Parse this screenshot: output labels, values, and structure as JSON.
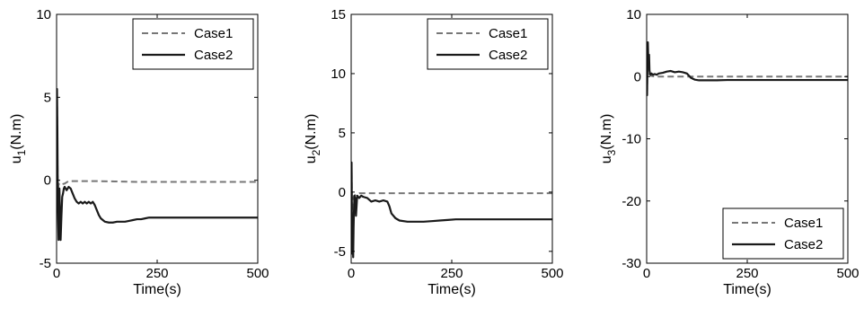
{
  "chart_data": [
    {
      "type": "line",
      "id": "u1",
      "xlabel": "Time(s)",
      "ylabel_main": "u",
      "ylabel_sub": "1",
      "ylabel_unit": "(N.m)",
      "xlim": [
        0,
        500
      ],
      "ylim": [
        -5,
        10
      ],
      "xticks": [
        0,
        250,
        500
      ],
      "yticks": [
        -5,
        0,
        5,
        10
      ],
      "legend_position": "top-right",
      "series": [
        {
          "name": "Case1",
          "style": "dashed",
          "color": "#777777",
          "x": [
            0,
            1,
            2,
            3,
            4,
            5,
            8,
            12,
            20,
            30,
            50,
            100,
            200,
            300,
            400,
            500
          ],
          "y": [
            0,
            5.5,
            2.0,
            -1.0,
            -0.6,
            -0.2,
            -0.3,
            -0.25,
            -0.2,
            -0.05,
            -0.05,
            -0.05,
            -0.1,
            -0.1,
            -0.1,
            -0.1
          ]
        },
        {
          "name": "Case2",
          "style": "solid",
          "color": "#1a1a1a",
          "x": [
            0,
            1,
            2,
            3,
            4,
            5,
            6,
            7,
            8,
            9,
            10,
            12,
            14,
            16,
            18,
            20,
            25,
            30,
            35,
            40,
            45,
            50,
            55,
            60,
            65,
            70,
            75,
            80,
            85,
            90,
            95,
            100,
            105,
            110,
            115,
            120,
            130,
            140,
            150,
            160,
            170,
            180,
            190,
            200,
            210,
            220,
            230,
            240,
            260,
            300,
            350,
            400,
            450,
            500
          ],
          "y": [
            0,
            5.5,
            3.0,
            -1.0,
            -2.5,
            -3.6,
            -2.0,
            -0.5,
            -1.5,
            -3.5,
            -3.6,
            -2.2,
            -1.0,
            -0.8,
            -0.5,
            -0.4,
            -0.6,
            -0.4,
            -0.5,
            -0.8,
            -1.1,
            -1.3,
            -1.4,
            -1.3,
            -1.4,
            -1.3,
            -1.4,
            -1.3,
            -1.4,
            -1.3,
            -1.5,
            -1.8,
            -2.1,
            -2.3,
            -2.4,
            -2.5,
            -2.55,
            -2.55,
            -2.5,
            -2.5,
            -2.5,
            -2.45,
            -2.4,
            -2.35,
            -2.35,
            -2.3,
            -2.25,
            -2.25,
            -2.25,
            -2.25,
            -2.25,
            -2.25,
            -2.25,
            -2.25
          ]
        }
      ]
    },
    {
      "type": "line",
      "id": "u2",
      "xlabel": "Time(s)",
      "ylabel_main": "u",
      "ylabel_sub": "2",
      "ylabel_unit": "(N.m)",
      "xlim": [
        0,
        500
      ],
      "ylim": [
        -6,
        15
      ],
      "xticks": [
        0,
        250,
        500
      ],
      "yticks": [
        -5,
        0,
        5,
        10,
        15
      ],
      "legend_position": "top-right",
      "series": [
        {
          "name": "Case1",
          "style": "dashed",
          "color": "#777777",
          "x": [
            0,
            1,
            2,
            3,
            5,
            8,
            12,
            20,
            30,
            50,
            100,
            200,
            300,
            400,
            500
          ],
          "y": [
            0,
            2.5,
            -2.0,
            -1.0,
            -0.5,
            -0.3,
            -0.2,
            -0.1,
            -0.1,
            -0.1,
            -0.1,
            -0.1,
            -0.1,
            -0.1,
            -0.1
          ]
        },
        {
          "name": "Case2",
          "style": "solid",
          "color": "#1a1a1a",
          "x": [
            0,
            1,
            2,
            3,
            4,
            5,
            6,
            7,
            8,
            10,
            12,
            15,
            20,
            25,
            30,
            40,
            50,
            60,
            70,
            80,
            90,
            95,
            100,
            110,
            120,
            140,
            160,
            180,
            200,
            220,
            240,
            260,
            280,
            300,
            350,
            400,
            450,
            500
          ],
          "y": [
            0,
            2.5,
            -3.0,
            -5.2,
            -4.0,
            -5.5,
            -3.0,
            -1.5,
            -0.3,
            -0.5,
            -2.0,
            -0.3,
            -0.5,
            -0.3,
            -0.4,
            -0.5,
            -0.8,
            -0.7,
            -0.8,
            -0.7,
            -0.8,
            -1.2,
            -1.8,
            -2.2,
            -2.4,
            -2.5,
            -2.5,
            -2.5,
            -2.45,
            -2.4,
            -2.35,
            -2.3,
            -2.3,
            -2.3,
            -2.3,
            -2.3,
            -2.3,
            -2.3
          ]
        }
      ]
    },
    {
      "type": "line",
      "id": "u3",
      "xlabel": "Time(s)",
      "ylabel_main": "u",
      "ylabel_sub": "3",
      "ylabel_unit": "(N.m)",
      "xlim": [
        0,
        500
      ],
      "ylim": [
        -30,
        10
      ],
      "xticks": [
        0,
        250,
        500
      ],
      "yticks": [
        -30,
        -20,
        -10,
        0,
        10
      ],
      "legend_position": "bottom-right",
      "series": [
        {
          "name": "Case1",
          "style": "dashed",
          "color": "#777777",
          "x": [
            0,
            1,
            2,
            3,
            5,
            8,
            12,
            20,
            30,
            50,
            100,
            200,
            300,
            400,
            500
          ],
          "y": [
            0,
            -3.0,
            2.0,
            1.5,
            0.5,
            0.3,
            0.1,
            0,
            0,
            0,
            0,
            0,
            0,
            0,
            0
          ]
        },
        {
          "name": "Case2",
          "style": "solid",
          "color": "#1a1a1a",
          "x": [
            0,
            1,
            2,
            3,
            4,
            5,
            6,
            7,
            8,
            10,
            12,
            15,
            20,
            25,
            30,
            40,
            50,
            60,
            70,
            80,
            90,
            100,
            110,
            120,
            130,
            140,
            150,
            175,
            200,
            250,
            300,
            350,
            400,
            450,
            500
          ],
          "y": [
            0,
            -3.0,
            2.0,
            5.5,
            3.0,
            1.5,
            3.5,
            1.0,
            0.5,
            0.3,
            0.5,
            0.3,
            0.4,
            0.3,
            0.5,
            0.6,
            0.8,
            0.9,
            0.7,
            0.8,
            0.7,
            0.5,
            -0.2,
            -0.5,
            -0.6,
            -0.6,
            -0.6,
            -0.6,
            -0.55,
            -0.55,
            -0.55,
            -0.55,
            -0.55,
            -0.55,
            -0.55
          ]
        }
      ]
    }
  ]
}
